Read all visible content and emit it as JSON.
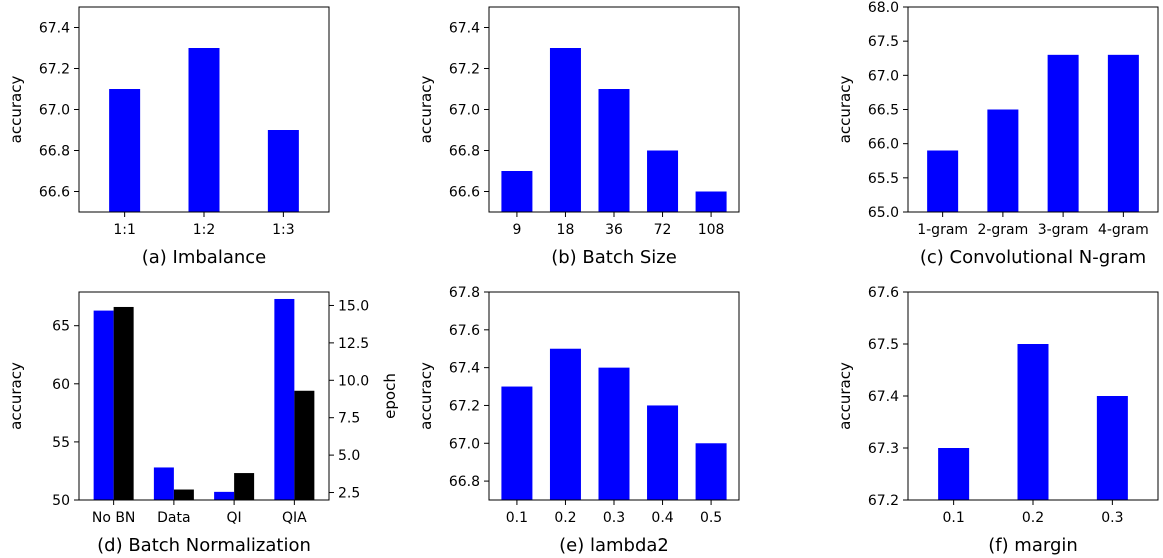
{
  "chart_data": [
    {
      "id": "imbalance",
      "type": "bar",
      "title": "(a) Imbalance",
      "ylabel": "accuracy",
      "categories": [
        "1:1",
        "1:2",
        "1:3"
      ],
      "values": [
        67.1,
        67.3,
        66.9
      ],
      "ylim": [
        66.5,
        67.5
      ],
      "yticks": [
        66.6,
        66.8,
        67.0,
        67.2,
        67.4
      ],
      "ytick_labels": [
        "66.6",
        "66.8",
        "67.0",
        "67.2",
        "67.4"
      ],
      "bar_color": "#0000ff"
    },
    {
      "id": "batch-size",
      "type": "bar",
      "title": "(b) Batch Size",
      "ylabel": "accuracy",
      "categories": [
        "9",
        "18",
        "36",
        "72",
        "108"
      ],
      "values": [
        66.7,
        67.3,
        67.1,
        66.8,
        66.6
      ],
      "ylim": [
        66.5,
        67.5
      ],
      "yticks": [
        66.6,
        66.8,
        67.0,
        67.2,
        67.4
      ],
      "ytick_labels": [
        "66.6",
        "66.8",
        "67.0",
        "67.2",
        "67.4"
      ],
      "bar_color": "#0000ff"
    },
    {
      "id": "ngram",
      "type": "bar",
      "title": "(c) Convolutional N-gram",
      "ylabel": "accuracy",
      "categories": [
        "1-gram",
        "2-gram",
        "3-gram",
        "4-gram"
      ],
      "values": [
        65.9,
        66.5,
        67.3,
        67.3
      ],
      "ylim": [
        65.0,
        68.0
      ],
      "yticks": [
        65.0,
        65.5,
        66.0,
        66.5,
        67.0,
        67.5,
        68.0
      ],
      "ytick_labels": [
        "65.0",
        "65.5",
        "66.0",
        "66.5",
        "67.0",
        "67.5",
        "68.0"
      ],
      "bar_color": "#0000ff"
    },
    {
      "id": "batch-norm",
      "type": "bar",
      "title": "(d) Batch Normalization",
      "ylabel": "accuracy",
      "ylabel_right": "epoch",
      "categories": [
        "No BN",
        "Data",
        "QI",
        "QIA"
      ],
      "series": [
        {
          "values": [
            66.3,
            52.8,
            50.7,
            67.3
          ],
          "color": "#0000ff",
          "axis": "left"
        },
        {
          "values": [
            14.9,
            2.7,
            3.8,
            9.3
          ],
          "color": "#000000",
          "axis": "right"
        }
      ],
      "ylim": [
        50,
        67.9
      ],
      "yticks": [
        50,
        55,
        60,
        65
      ],
      "ytick_labels": [
        "50",
        "55",
        "60",
        "65"
      ],
      "ylim_right": [
        2.0,
        15.9
      ],
      "yticks_right": [
        2.5,
        5.0,
        7.5,
        10.0,
        12.5,
        15.0
      ],
      "ytick_labels_right": [
        "2.5",
        "5.0",
        "7.5",
        "10.0",
        "12.5",
        "15.0"
      ]
    },
    {
      "id": "lambda2",
      "type": "bar",
      "title": "(e) lambda2",
      "ylabel": "accuracy",
      "categories": [
        "0.1",
        "0.2",
        "0.3",
        "0.4",
        "0.5"
      ],
      "values": [
        67.3,
        67.5,
        67.4,
        67.2,
        67.0
      ],
      "ylim": [
        66.7,
        67.8
      ],
      "yticks": [
        66.8,
        67.0,
        67.2,
        67.4,
        67.6,
        67.8
      ],
      "ytick_labels": [
        "66.8",
        "67.0",
        "67.2",
        "67.4",
        "67.6",
        "67.8"
      ],
      "bar_color": "#0000ff"
    },
    {
      "id": "margin",
      "type": "bar",
      "title": "(f) margin",
      "ylabel": "accuracy",
      "categories": [
        "0.1",
        "0.2",
        "0.3"
      ],
      "values": [
        67.3,
        67.5,
        67.4
      ],
      "ylim": [
        67.2,
        67.6
      ],
      "yticks": [
        67.2,
        67.3,
        67.4,
        67.5,
        67.6
      ],
      "ytick_labels": [
        "67.2",
        "67.3",
        "67.4",
        "67.5",
        "67.6"
      ],
      "bar_color": "#0000ff"
    }
  ]
}
